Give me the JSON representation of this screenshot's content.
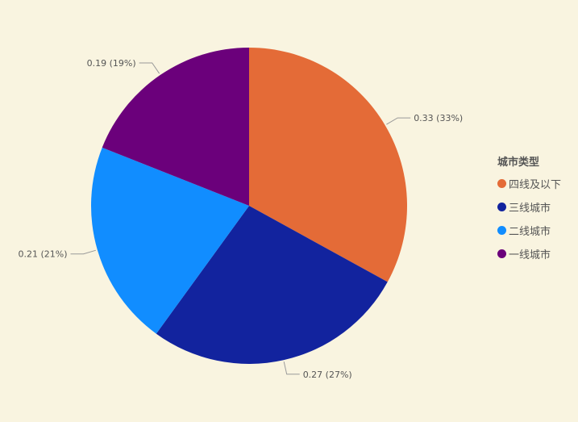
{
  "chart_data": {
    "type": "pie",
    "legend_title": "城市类型",
    "legend_placement": "right",
    "start_angle_deg": 0,
    "direction": "clockwise",
    "slices": [
      {
        "name": "四线及以下",
        "value": 0.33,
        "percent": "33%",
        "label": "0.33 (33%)",
        "color": "#e46b37"
      },
      {
        "name": "三线城市",
        "value": 0.27,
        "percent": "27%",
        "label": "0.27 (27%)",
        "color": "#12239e"
      },
      {
        "name": "二线城市",
        "value": 0.21,
        "percent": "21%",
        "label": "0.21 (21%)",
        "color": "#118dff"
      },
      {
        "name": "一线城市",
        "value": 0.19,
        "percent": "19%",
        "label": "0.19 (19%)",
        "color": "#6b007b"
      }
    ]
  },
  "legend": {
    "title": "城市类型",
    "items": [
      {
        "label": "四线及以下",
        "color": "#e46b37"
      },
      {
        "label": "三线城市",
        "color": "#12239e"
      },
      {
        "label": "二线城市",
        "color": "#118dff"
      },
      {
        "label": "一线城市",
        "color": "#6b007b"
      }
    ]
  }
}
